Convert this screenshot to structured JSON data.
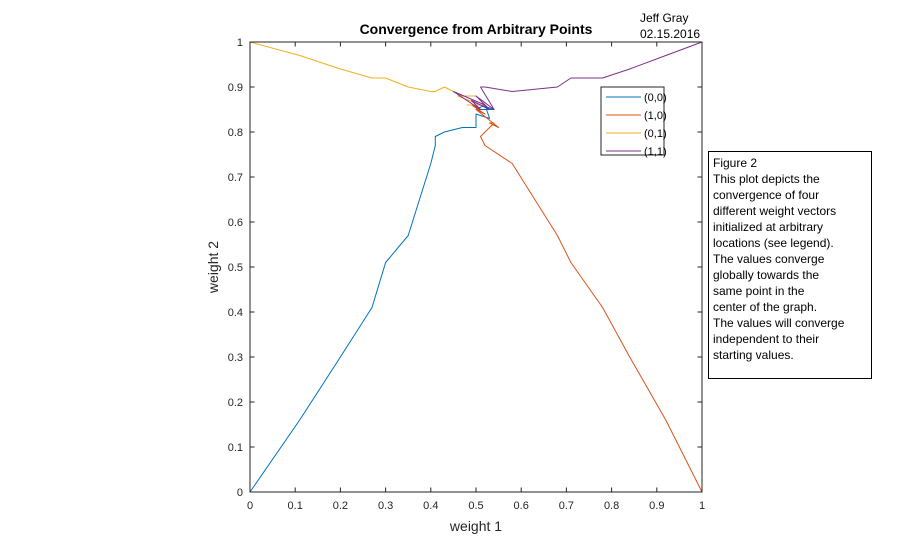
{
  "author": {
    "name": "Jeff Gray",
    "date": "02.15.2016"
  },
  "note": {
    "lines": [
      "Figure 2",
      "This plot depicts the",
      "convergence of four",
      "different weight vectors",
      "initialized at arbitrary",
      "locations (see legend).",
      "The values converge",
      "globally towards the",
      "same point in the",
      "center of the graph.",
      "The values will converge",
      "independent to their",
      "starting values."
    ]
  },
  "colors": {
    "axis": "#262626",
    "series": [
      "#0072BD",
      "#D95319",
      "#EDB120",
      "#7E2F8E"
    ]
  },
  "chart_data": {
    "type": "line",
    "title": "Convergence from Arbitrary Points",
    "xlabel": "weight 1",
    "ylabel": "weight 2",
    "xlim": [
      0,
      1
    ],
    "ylim": [
      0,
      1
    ],
    "xticks": [
      "0",
      "0.1",
      "0.2",
      "0.3",
      "0.4",
      "0.5",
      "0.6",
      "0.7",
      "0.8",
      "0.9",
      "1"
    ],
    "yticks": [
      "0",
      "0.1",
      "0.2",
      "0.3",
      "0.4",
      "0.5",
      "0.6",
      "0.7",
      "0.8",
      "0.9",
      "1"
    ],
    "grid": false,
    "legend_position": "top-right",
    "series": [
      {
        "name": "(0,0)",
        "x": [
          0,
          0.11,
          0.2,
          0.27,
          0.3,
          0.35,
          0.4,
          0.41,
          0.41,
          0.43,
          0.47,
          0.5,
          0.5,
          0.53,
          0.52,
          0.5,
          0.54,
          0.51,
          0.53,
          0.52
        ],
        "y": [
          0,
          0.16,
          0.3,
          0.41,
          0.51,
          0.57,
          0.73,
          0.77,
          0.79,
          0.8,
          0.81,
          0.81,
          0.84,
          0.83,
          0.86,
          0.85,
          0.85,
          0.86,
          0.85,
          0.86
        ]
      },
      {
        "name": "(1,0)",
        "x": [
          1,
          0.92,
          0.84,
          0.78,
          0.71,
          0.68,
          0.58,
          0.52,
          0.51,
          0.54,
          0.53,
          0.55,
          0.5,
          0.52,
          0.49,
          0.51
        ],
        "y": [
          0,
          0.16,
          0.3,
          0.41,
          0.51,
          0.57,
          0.73,
          0.77,
          0.79,
          0.82,
          0.82,
          0.81,
          0.85,
          0.84,
          0.86,
          0.85
        ]
      },
      {
        "name": "(0,1)",
        "x": [
          0,
          0.11,
          0.2,
          0.27,
          0.3,
          0.35,
          0.4,
          0.41,
          0.41,
          0.43,
          0.47,
          0.5,
          0.46,
          0.51,
          0.48,
          0.52,
          0.5
        ],
        "y": [
          1,
          0.97,
          0.94,
          0.92,
          0.92,
          0.9,
          0.89,
          0.89,
          0.89,
          0.9,
          0.88,
          0.88,
          0.88,
          0.86,
          0.86,
          0.86,
          0.86
        ]
      },
      {
        "name": "(1,1)",
        "x": [
          1,
          0.92,
          0.84,
          0.78,
          0.71,
          0.68,
          0.58,
          0.52,
          0.51,
          0.54,
          0.5,
          0.53,
          0.49,
          0.51,
          0.45,
          0.52
        ],
        "y": [
          1,
          0.97,
          0.94,
          0.92,
          0.92,
          0.9,
          0.89,
          0.9,
          0.9,
          0.85,
          0.88,
          0.85,
          0.87,
          0.85,
          0.89,
          0.86
        ]
      }
    ]
  }
}
